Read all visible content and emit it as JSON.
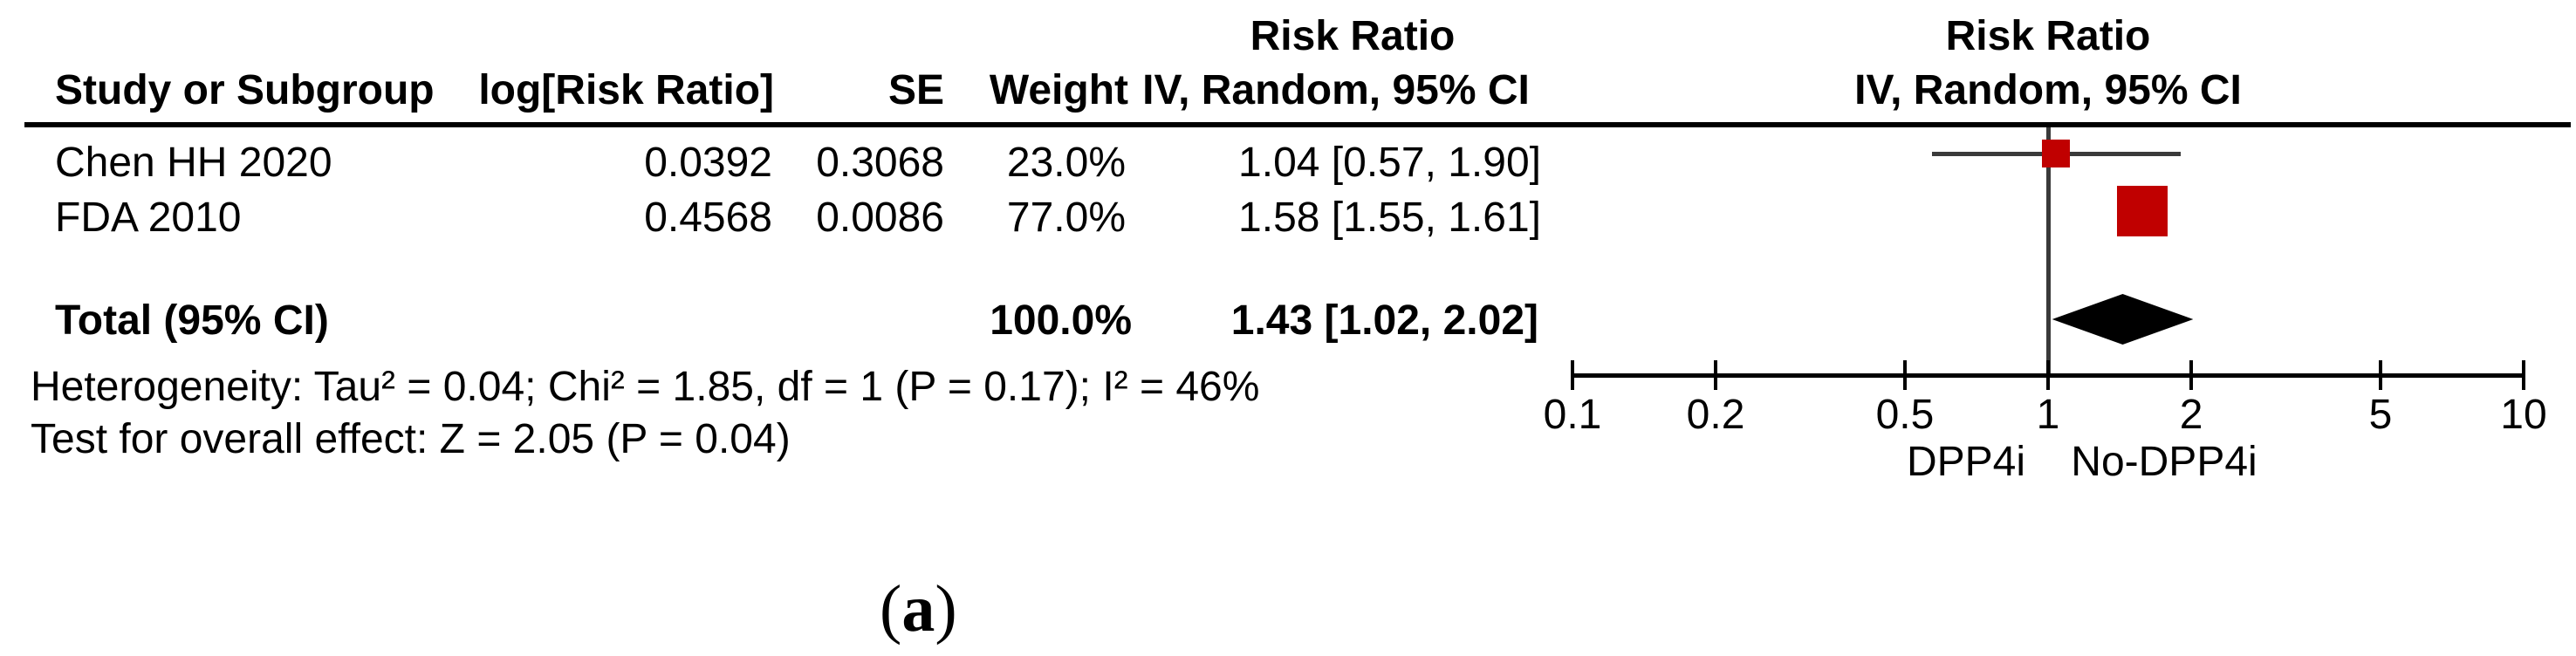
{
  "table": {
    "headers": {
      "study": "Study or Subgroup",
      "log_rr": "log[Risk Ratio]",
      "se": "SE",
      "weight": "Weight",
      "effect_line1": "Risk Ratio",
      "effect_line2": "IV, Random, 95% CI"
    },
    "rows": [
      {
        "study": "Chen HH 2020",
        "log_rr": "0.0392",
        "se": "0.3068",
        "weight": "23.0%",
        "ci": "1.04 [0.57, 1.90]"
      },
      {
        "study": "FDA 2010",
        "log_rr": "0.4568",
        "se": "0.0086",
        "weight": "77.0%",
        "ci": "1.58 [1.55, 1.61]"
      }
    ],
    "total": {
      "label": "Total (95% CI)",
      "weight": "100.0%",
      "ci": "1.43 [1.02, 2.02]"
    },
    "footnotes": [
      "Heterogeneity: Tau² = 0.04; Chi² = 1.85, df = 1 (P = 0.17); I² = 46%",
      "Test for overall effect: Z = 2.05 (P = 0.04)"
    ]
  },
  "plot": {
    "header_line1": "Risk Ratio",
    "header_line2": "IV, Random, 95% CI",
    "axis_labels": [
      "0.1",
      "0.2",
      "0.5",
      "1",
      "2",
      "5",
      "10"
    ],
    "left_group_label": "DPP4i",
    "right_group_label": "No-DPP4i"
  },
  "caption": {
    "open": "(",
    "letter": "a",
    "close": ")"
  },
  "chart_data": {
    "type": "forest",
    "effect_measure": "Risk Ratio",
    "model": "IV, Random, 95% CI",
    "scale": "log",
    "axis": {
      "min": 0.1,
      "max": 10,
      "ticks": [
        0.1,
        0.2,
        0.5,
        1,
        2,
        5,
        10
      ],
      "null_line": 1
    },
    "studies": [
      {
        "name": "Chen HH 2020",
        "log_rr": 0.0392,
        "se": 0.3068,
        "weight_pct": 23.0,
        "rr": 1.04,
        "ci_low": 0.57,
        "ci_high": 1.9
      },
      {
        "name": "FDA 2010",
        "log_rr": 0.4568,
        "se": 0.0086,
        "weight_pct": 77.0,
        "rr": 1.58,
        "ci_low": 1.55,
        "ci_high": 1.61
      }
    ],
    "total": {
      "label": "Total (95% CI)",
      "weight_pct": 100.0,
      "rr": 1.43,
      "ci_low": 1.02,
      "ci_high": 2.02
    },
    "heterogeneity": {
      "tau2": 0.04,
      "chi2": 1.85,
      "df": 1,
      "p": 0.17,
      "i2_pct": 46
    },
    "overall_effect": {
      "z": 2.05,
      "p": 0.04
    },
    "group_labels": {
      "left_of_null": "DPP4i",
      "right_of_null": "No-DPP4i"
    },
    "colors": {
      "marker": "#C00000",
      "ci_line": "#3A3A3A",
      "diamond": "#000000",
      "axis": "#000000"
    }
  }
}
